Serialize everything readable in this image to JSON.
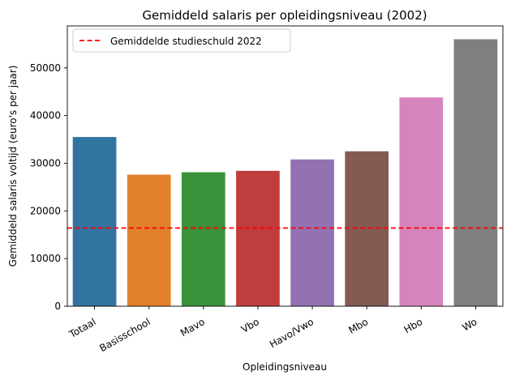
{
  "chart_data": {
    "type": "bar",
    "title": "Gemiddeld salaris per opleidingsniveau (2002)",
    "xlabel": "Opleidingsniveau",
    "ylabel": "Gemiddeld salaris voltijd (euro's per jaar)",
    "categories": [
      "Totaal",
      "Basisschool",
      "Mavo",
      "Vbo",
      "Havo/Vwo",
      "Mbo",
      "Hbo",
      "Wo"
    ],
    "values": [
      35500,
      27600,
      28100,
      28400,
      30800,
      32500,
      43800,
      56000
    ],
    "colors": [
      "#3274a1",
      "#e1812c",
      "#3a923a",
      "#c03d3e",
      "#9372b2",
      "#845b53",
      "#d684bd",
      "#7f7f7f"
    ],
    "ylim": [
      0,
      58800
    ],
    "yticks": [
      0,
      10000,
      20000,
      30000,
      40000,
      50000
    ],
    "reference_line": {
      "label": "Gemiddelde studieschuld 2022",
      "value": 16400,
      "color": "#ff0000",
      "style": "dashed"
    },
    "legend_position": "top-left",
    "grid": false
  }
}
